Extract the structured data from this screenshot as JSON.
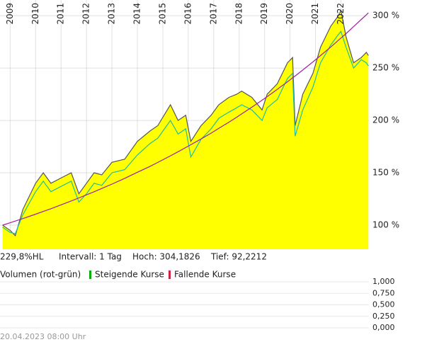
{
  "chart_data": [
    {
      "type": "line",
      "xlim": [
        2008.6,
        2023.1
      ],
      "xticks": [
        2009,
        2010,
        2011,
        2012,
        2013,
        2014,
        2015,
        2016,
        2017,
        2018,
        2019,
        2020,
        2021,
        2022
      ],
      "ylim": [
        77,
        315
      ],
      "yticks": [
        {
          "value": 100,
          "label": "100 %"
        },
        {
          "value": 150,
          "label": "150 %"
        },
        {
          "value": 200,
          "label": "200 %"
        },
        {
          "value": 250,
          "label": "250 %"
        },
        {
          "value": 300,
          "label": "300 %"
        }
      ],
      "grid": true,
      "x": [
        2008.7,
        2009.0,
        2009.2,
        2009.5,
        2010.0,
        2010.3,
        2010.6,
        2011.0,
        2011.4,
        2011.7,
        2012.0,
        2012.3,
        2012.6,
        2013.0,
        2013.5,
        2014.0,
        2014.5,
        2014.8,
        2015.3,
        2015.6,
        2015.9,
        2016.1,
        2016.5,
        2016.9,
        2017.2,
        2017.6,
        2017.9,
        2018.1,
        2018.5,
        2018.9,
        2019.1,
        2019.5,
        2019.9,
        2020.1,
        2020.2,
        2020.5,
        2020.9,
        2021.2,
        2021.6,
        2021.9,
        2022.0,
        2022.2,
        2022.5,
        2022.8,
        2023.0,
        2023.08
      ],
      "series": [
        {
          "color": "#ffff00",
          "line_color": "#555555",
          "area": true,
          "values": [
            100,
            95,
            90,
            115,
            140,
            150,
            140,
            145,
            150,
            130,
            140,
            150,
            148,
            160,
            163,
            180,
            190,
            195,
            215,
            200,
            205,
            180,
            195,
            205,
            215,
            222,
            225,
            228,
            222,
            210,
            225,
            235,
            255,
            260,
            195,
            225,
            245,
            270,
            290,
            300,
            305,
            280,
            255,
            260,
            265,
            262
          ]
        },
        {
          "color": "#20c0a0",
          "values": [
            98,
            93,
            92,
            110,
            132,
            142,
            132,
            137,
            142,
            122,
            130,
            140,
            138,
            150,
            153,
            167,
            178,
            183,
            200,
            187,
            192,
            165,
            182,
            192,
            202,
            208,
            212,
            215,
            210,
            200,
            212,
            220,
            240,
            245,
            185,
            210,
            232,
            255,
            272,
            282,
            285,
            270,
            250,
            258,
            255,
            252
          ]
        },
        {
          "color": "#a020a0",
          "values": [
            100,
            102.3,
            103.9,
            106.3,
            110.5,
            113.1,
            115.7,
            119.4,
            123.1,
            126,
            128.9,
            131.9,
            135,
            139.2,
            144.7,
            150.5,
            156.2,
            159.9,
            166.2,
            170.1,
            174.1,
            176.8,
            182.3,
            187.9,
            192.4,
            198.4,
            203,
            206.2,
            212.6,
            219.3,
            222.7,
            229.7,
            236.9,
            240.6,
            242.4,
            248.1,
            255.9,
            261.9,
            270.1,
            276.5,
            278.6,
            282.9,
            289.6,
            296.4,
            300.9,
            302.8
          ]
        }
      ]
    },
    {
      "type": "bar",
      "title": "Volumen (rot-grün)",
      "legend": [
        {
          "label": "Steigende Kurse",
          "color": "#00b000"
        },
        {
          "label": "Fallende Kurse",
          "color": "#d02040"
        }
      ],
      "ylim": [
        0,
        1
      ],
      "yticks": [
        {
          "value": 0,
          "label": "0,000"
        },
        {
          "value": 0.25,
          "label": "0,250"
        },
        {
          "value": 0.5,
          "label": "0,500"
        },
        {
          "value": 0.75,
          "label": "0,750"
        },
        {
          "value": 1,
          "label": "1,000"
        }
      ],
      "grid": true
    }
  ],
  "info": [
    "229,8%HL",
    "Intervall: 1 Tag",
    "Hoch: 304,1826",
    "Tief: 92,2212"
  ],
  "footer": "20.04.2023 08:00 Uhr"
}
